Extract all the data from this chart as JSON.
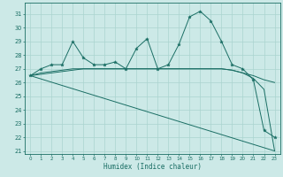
{
  "xlabel": "Humidex (Indice chaleur)",
  "xlim": [
    -0.5,
    23.5
  ],
  "ylim": [
    20.8,
    31.8
  ],
  "yticks": [
    21,
    22,
    23,
    24,
    25,
    26,
    27,
    28,
    29,
    30,
    31
  ],
  "xticks": [
    0,
    1,
    2,
    3,
    4,
    5,
    6,
    7,
    8,
    9,
    10,
    11,
    12,
    13,
    14,
    15,
    16,
    17,
    18,
    19,
    20,
    21,
    22,
    23
  ],
  "bg_color": "#cce9e7",
  "grid_color": "#aad4d0",
  "line_color": "#1a6e64",
  "series1_x": [
    0,
    1,
    2,
    3,
    4,
    5,
    6,
    7,
    8,
    9,
    10,
    11,
    12,
    13,
    14,
    15,
    16,
    17,
    18,
    19,
    20,
    21,
    22,
    23
  ],
  "series1_y": [
    26.5,
    27.0,
    27.3,
    27.3,
    29.0,
    27.8,
    27.3,
    27.3,
    27.5,
    27.0,
    28.5,
    29.2,
    27.0,
    27.3,
    28.8,
    30.8,
    31.2,
    30.5,
    29.0,
    27.3,
    27.0,
    26.2,
    22.5,
    22.0
  ],
  "series2_x": [
    0,
    1,
    2,
    3,
    4,
    5,
    6,
    7,
    8,
    9,
    10,
    11,
    12,
    13,
    14,
    15,
    16,
    17,
    18,
    19,
    20,
    21,
    22,
    23
  ],
  "series2_y": [
    26.5,
    26.7,
    26.8,
    26.9,
    27.0,
    27.0,
    27.0,
    27.0,
    27.0,
    27.0,
    27.0,
    27.0,
    27.0,
    27.0,
    27.0,
    27.0,
    27.0,
    27.0,
    27.0,
    26.9,
    26.7,
    26.5,
    26.2,
    26.0
  ],
  "series3_x": [
    0,
    1,
    2,
    3,
    4,
    5,
    6,
    7,
    8,
    9,
    10,
    11,
    12,
    13,
    14,
    15,
    16,
    17,
    18,
    19,
    20,
    21,
    22,
    23
  ],
  "series3_y": [
    26.5,
    26.6,
    26.7,
    26.8,
    26.9,
    27.0,
    27.0,
    27.0,
    27.0,
    27.0,
    27.0,
    27.0,
    27.0,
    27.0,
    27.0,
    27.0,
    27.0,
    27.0,
    27.0,
    26.9,
    26.7,
    26.3,
    25.5,
    21.0
  ],
  "series4_x": [
    0,
    23
  ],
  "series4_y": [
    26.5,
    21.0
  ]
}
